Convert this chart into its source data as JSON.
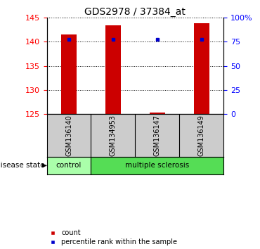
{
  "title": "GDS2978 / 37384_at",
  "samples": [
    "GSM136140",
    "GSM134953",
    "GSM136147",
    "GSM136149"
  ],
  "bar_values": [
    141.5,
    143.3,
    125.3,
    143.8
  ],
  "percentile_values": [
    77.0,
    77.5,
    77.5,
    77.5
  ],
  "ylim_left": [
    125,
    145
  ],
  "ylim_right": [
    0,
    100
  ],
  "yticks_left": [
    125,
    130,
    135,
    140,
    145
  ],
  "yticks_right": [
    0,
    25,
    50,
    75,
    100
  ],
  "ytick_labels_right": [
    "0",
    "25",
    "50",
    "75",
    "100%"
  ],
  "bar_color": "#cc0000",
  "percentile_color": "#0000cc",
  "bar_bottom": 125,
  "disease_state_label": "disease state",
  "control_color": "#aaffaa",
  "ms_color": "#55dd55",
  "label_count": "count",
  "label_percentile": "percentile rank within the sample",
  "sample_bg": "#cccccc",
  "bar_width": 0.35
}
